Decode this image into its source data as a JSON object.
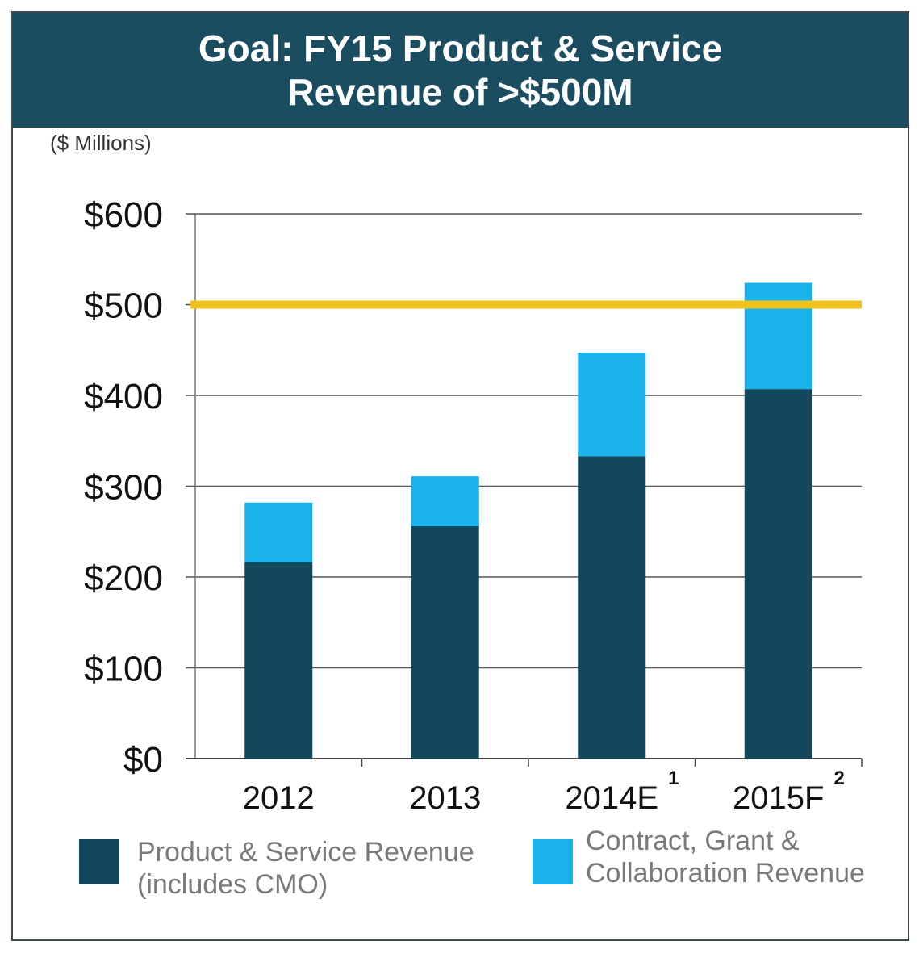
{
  "title": {
    "line1": "Goal:  FY15 Product & Service",
    "line2": "Revenue of >$500M"
  },
  "units_label": "($ Millions)",
  "colors": {
    "title_band": "#1b4d61",
    "product_service": "#13475c",
    "contract_grant": "#19b2ea",
    "goal_line": "#f1c21b",
    "grid": "#555555"
  },
  "chart_data": {
    "type": "bar",
    "stacked": true,
    "categories": [
      "2012",
      "2013",
      "2014E",
      "2015F"
    ],
    "category_superscripts": [
      "",
      "",
      "1",
      "2"
    ],
    "series": [
      {
        "name": "Product & Service Revenue (includes CMO)",
        "values": [
          216,
          256,
          333,
          407
        ]
      },
      {
        "name": "Contract, Grant & Collaboration Revenue",
        "values": [
          66,
          55,
          114,
          117
        ]
      }
    ],
    "goal_line_value": 500,
    "ylim": [
      0,
      600
    ],
    "yticks": [
      0,
      100,
      200,
      300,
      400,
      500,
      600
    ],
    "ytick_labels": [
      "$0",
      "$100",
      "$200",
      "$300",
      "$400",
      "$500",
      "$600"
    ],
    "grid": true,
    "legend_position": "bottom"
  },
  "legend": {
    "item1_line1": "Product & Service Revenue",
    "item1_line2": "(includes CMO)",
    "item2_line1": "Contract, Grant &",
    "item2_line2": "Collaboration Revenue"
  }
}
